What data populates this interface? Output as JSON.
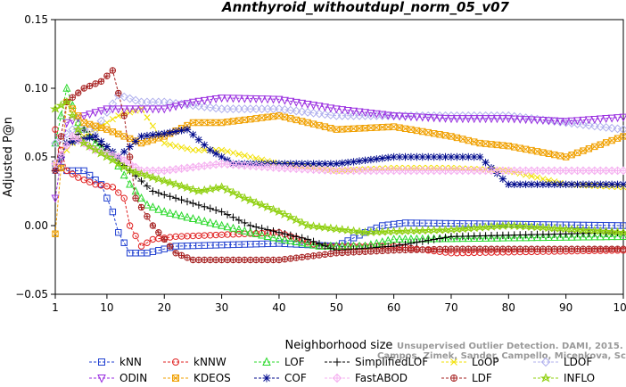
{
  "chart_data": {
    "type": "line",
    "title": "Annthyroid_withoutdupl_norm_05_v07",
    "xlabel": "Neighborhood size",
    "ylabel": "Adjusted P@n",
    "xlim": [
      1,
      100
    ],
    "ylim": [
      -0.05,
      0.15
    ],
    "xticks": [
      1,
      10,
      20,
      30,
      40,
      50,
      60,
      70,
      80,
      90,
      100
    ],
    "yticks": [
      -0.05,
      0.0,
      0.05,
      0.1,
      0.15
    ],
    "ytick_labels": [
      "−0.05",
      "0.00",
      "0.05",
      "0.10",
      "0.15"
    ],
    "legend_position": "bottom",
    "watermark": [
      "Unsupervised Outlier Detection. DAMI, 2015.",
      "Campos, Zimek, Sander, Campello, Micenkova, Schubert, Assent, Houle"
    ],
    "series": [
      {
        "name": "kNN",
        "color": "#1f3fd0",
        "marker": "square",
        "knots": [
          [
            1,
            0.045
          ],
          [
            3,
            0.04
          ],
          [
            6,
            0.04
          ],
          [
            9,
            0.03
          ],
          [
            11,
            0.01
          ],
          [
            12,
            -0.005
          ],
          [
            14,
            -0.02
          ],
          [
            17,
            -0.02
          ],
          [
            22,
            -0.015
          ],
          [
            40,
            -0.013
          ],
          [
            50,
            -0.015
          ],
          [
            55,
            -0.005
          ],
          [
            58,
            0.0
          ],
          [
            62,
            0.002
          ],
          [
            100,
            0.0
          ]
        ]
      },
      {
        "name": "kNNW",
        "color": "#e02020",
        "marker": "circle",
        "knots": [
          [
            1,
            0.07
          ],
          [
            3,
            0.04
          ],
          [
            5,
            0.035
          ],
          [
            8,
            0.03
          ],
          [
            11,
            0.028
          ],
          [
            13,
            0.02
          ],
          [
            14,
            0.0
          ],
          [
            16,
            -0.015
          ],
          [
            18,
            -0.01
          ],
          [
            22,
            -0.008
          ],
          [
            40,
            -0.005
          ],
          [
            47,
            -0.015
          ],
          [
            60,
            -0.015
          ],
          [
            70,
            -0.02
          ],
          [
            100,
            -0.018
          ]
        ]
      },
      {
        "name": "LOF",
        "color": "#2ad92a",
        "marker": "triangle",
        "knots": [
          [
            1,
            0.06
          ],
          [
            3,
            0.1
          ],
          [
            5,
            0.075
          ],
          [
            8,
            0.06
          ],
          [
            11,
            0.05
          ],
          [
            14,
            0.03
          ],
          [
            17,
            0.015
          ],
          [
            20,
            0.01
          ],
          [
            25,
            0.005
          ],
          [
            30,
            0.0
          ],
          [
            38,
            -0.008
          ],
          [
            47,
            -0.015
          ],
          [
            55,
            -0.015
          ],
          [
            60,
            -0.01
          ],
          [
            100,
            -0.008
          ]
        ]
      },
      {
        "name": "SimplifiedLOF",
        "color": "#000000",
        "marker": "plus",
        "knots": [
          [
            1,
            0.04
          ],
          [
            3,
            0.06
          ],
          [
            6,
            0.07
          ],
          [
            10,
            0.055
          ],
          [
            14,
            0.04
          ],
          [
            18,
            0.025
          ],
          [
            22,
            0.02
          ],
          [
            26,
            0.015
          ],
          [
            30,
            0.01
          ],
          [
            35,
            0.0
          ],
          [
            40,
            -0.005
          ],
          [
            45,
            -0.01
          ],
          [
            50,
            -0.018
          ],
          [
            60,
            -0.015
          ],
          [
            70,
            -0.008
          ],
          [
            100,
            -0.005
          ]
        ]
      },
      {
        "name": "LoOP",
        "color": "#f2e000",
        "marker": "x",
        "knots": [
          [
            1,
            0.045
          ],
          [
            4,
            0.06
          ],
          [
            8,
            0.07
          ],
          [
            12,
            0.08
          ],
          [
            16,
            0.085
          ],
          [
            20,
            0.06
          ],
          [
            25,
            0.055
          ],
          [
            30,
            0.055
          ],
          [
            40,
            0.045
          ],
          [
            50,
            0.04
          ],
          [
            60,
            0.042
          ],
          [
            70,
            0.042
          ],
          [
            80,
            0.04
          ],
          [
            90,
            0.03
          ],
          [
            100,
            0.028
          ]
        ]
      },
      {
        "name": "LDOF",
        "color": "#b0b0ee",
        "marker": "diamond",
        "knots": [
          [
            1,
            0.06
          ],
          [
            4,
            0.07
          ],
          [
            8,
            0.07
          ],
          [
            12,
            0.095
          ],
          [
            16,
            0.09
          ],
          [
            20,
            0.09
          ],
          [
            30,
            0.085
          ],
          [
            40,
            0.085
          ],
          [
            50,
            0.08
          ],
          [
            60,
            0.08
          ],
          [
            70,
            0.08
          ],
          [
            80,
            0.08
          ],
          [
            90,
            0.075
          ],
          [
            100,
            0.07
          ]
        ]
      },
      {
        "name": "ODIN",
        "color": "#9a2ee0",
        "marker": "triangle-down",
        "knots": [
          [
            1,
            0.02
          ],
          [
            3,
            0.075
          ],
          [
            6,
            0.08
          ],
          [
            10,
            0.085
          ],
          [
            15,
            0.085
          ],
          [
            20,
            0.085
          ],
          [
            25,
            0.09
          ],
          [
            30,
            0.093
          ],
          [
            40,
            0.092
          ],
          [
            50,
            0.085
          ],
          [
            60,
            0.08
          ],
          [
            70,
            0.078
          ],
          [
            80,
            0.078
          ],
          [
            90,
            0.076
          ],
          [
            100,
            0.079
          ]
        ]
      },
      {
        "name": "KDEOS",
        "color": "#f0a000",
        "marker": "square-x",
        "knots": [
          [
            1,
            -0.006
          ],
          [
            3,
            0.09
          ],
          [
            6,
            0.075
          ],
          [
            10,
            0.07
          ],
          [
            16,
            0.06
          ],
          [
            20,
            0.065
          ],
          [
            25,
            0.075
          ],
          [
            30,
            0.075
          ],
          [
            40,
            0.08
          ],
          [
            50,
            0.07
          ],
          [
            60,
            0.072
          ],
          [
            70,
            0.065
          ],
          [
            75,
            0.06
          ],
          [
            80,
            0.058
          ],
          [
            90,
            0.05
          ],
          [
            100,
            0.065
          ]
        ]
      },
      {
        "name": "COF",
        "color": "#000a8c",
        "marker": "asterisk",
        "knots": [
          [
            1,
            0.04
          ],
          [
            3,
            0.06
          ],
          [
            8,
            0.065
          ],
          [
            12,
            0.05
          ],
          [
            16,
            0.065
          ],
          [
            20,
            0.067
          ],
          [
            24,
            0.07
          ],
          [
            28,
            0.055
          ],
          [
            32,
            0.045
          ],
          [
            40,
            0.045
          ],
          [
            50,
            0.045
          ],
          [
            60,
            0.05
          ],
          [
            70,
            0.05
          ],
          [
            75,
            0.05
          ],
          [
            80,
            0.03
          ],
          [
            90,
            0.03
          ],
          [
            100,
            0.03
          ]
        ]
      },
      {
        "name": "FastABOD",
        "color": "#f5b0f0",
        "marker": "diamond-plus",
        "knots": [
          [
            1,
            0.045
          ],
          [
            4,
            0.065
          ],
          [
            8,
            0.055
          ],
          [
            12,
            0.05
          ],
          [
            16,
            0.04
          ],
          [
            20,
            0.04
          ],
          [
            30,
            0.045
          ],
          [
            40,
            0.042
          ],
          [
            50,
            0.04
          ],
          [
            60,
            0.04
          ],
          [
            70,
            0.04
          ],
          [
            80,
            0.04
          ],
          [
            90,
            0.04
          ],
          [
            100,
            0.04
          ]
        ]
      },
      {
        "name": "LDF",
        "color": "#a62020",
        "marker": "circle-plus",
        "knots": [
          [
            1,
            0.04
          ],
          [
            3,
            0.09
          ],
          [
            6,
            0.1
          ],
          [
            9,
            0.105
          ],
          [
            11,
            0.113
          ],
          [
            13,
            0.08
          ],
          [
            15,
            0.02
          ],
          [
            18,
            0.0
          ],
          [
            22,
            -0.02
          ],
          [
            25,
            -0.025
          ],
          [
            40,
            -0.025
          ],
          [
            50,
            -0.02
          ],
          [
            60,
            -0.018
          ],
          [
            70,
            -0.017
          ],
          [
            100,
            -0.017
          ]
        ]
      },
      {
        "name": "INFLO",
        "color": "#90d010",
        "marker": "star",
        "knots": [
          [
            1,
            0.085
          ],
          [
            3,
            0.09
          ],
          [
            6,
            0.06
          ],
          [
            10,
            0.05
          ],
          [
            14,
            0.04
          ],
          [
            18,
            0.035
          ],
          [
            22,
            0.03
          ],
          [
            26,
            0.025
          ],
          [
            30,
            0.028
          ],
          [
            34,
            0.02
          ],
          [
            40,
            0.01
          ],
          [
            45,
            0.0
          ],
          [
            55,
            -0.005
          ],
          [
            70,
            -0.003
          ],
          [
            80,
            0.0
          ],
          [
            100,
            -0.005
          ]
        ]
      }
    ]
  }
}
